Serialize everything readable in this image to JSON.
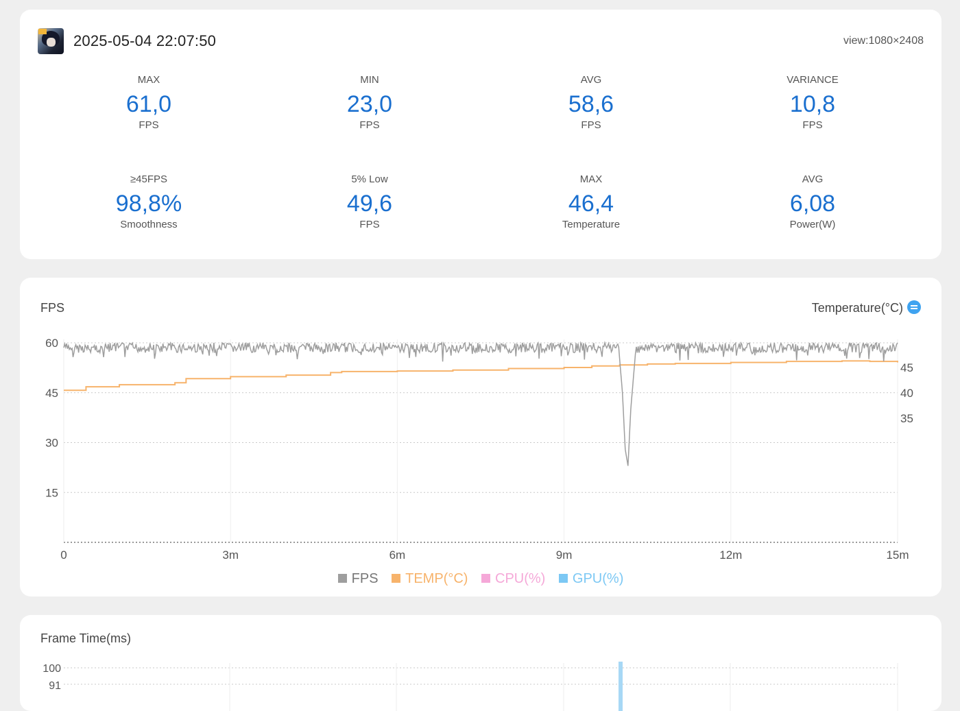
{
  "header": {
    "timestamp": "2025-05-04 22:07:50",
    "view": "view:1080×2408",
    "app_icon": "game-avatar-icon"
  },
  "stats": [
    {
      "label": "MAX",
      "value": "61,0",
      "unit": "FPS"
    },
    {
      "label": "MIN",
      "value": "23,0",
      "unit": "FPS"
    },
    {
      "label": "AVG",
      "value": "58,6",
      "unit": "FPS"
    },
    {
      "label": "VARIANCE",
      "value": "10,8",
      "unit": "FPS"
    },
    {
      "label": "≥45FPS",
      "value": "98,8%",
      "unit": "Smoothness"
    },
    {
      "label": "5% Low",
      "value": "49,6",
      "unit": "FPS"
    },
    {
      "label": "MAX",
      "value": "46,4",
      "unit": "Temperature"
    },
    {
      "label": "AVG",
      "value": "6,08",
      "unit": "Power(W)"
    }
  ],
  "fps_chart": {
    "title": "FPS",
    "right_title": "Temperature(°C)",
    "toggle_icon": "swap-axis-icon",
    "legend": [
      {
        "name": "FPS",
        "color": "#999999"
      },
      {
        "name": "TEMP(°C)",
        "color": "#f7b36b"
      },
      {
        "name": "CPU(%)",
        "color": "#f5a8d8"
      },
      {
        "name": "GPU(%)",
        "color": "#7cc8f4"
      }
    ]
  },
  "chart_data": [
    {
      "type": "line",
      "title": "FPS",
      "xlabel": "",
      "ylabel": "FPS",
      "y2label": "Temperature(°C)",
      "x_tick_labels": [
        "0",
        "3m",
        "6m",
        "9m",
        "12m",
        "15m"
      ],
      "x_range_minutes": [
        0,
        15
      ],
      "y_ticks": [
        "60",
        "45",
        "30",
        "15"
      ],
      "y2_ticks": [
        "45",
        "40",
        "35"
      ],
      "ylim": [
        0,
        61
      ],
      "grid": true,
      "legend_placement": "bottom",
      "series": [
        {
          "name": "FPS",
          "color": "#9e9e9e",
          "x": [
            0,
            0.5,
            1,
            1.5,
            2,
            2.5,
            3,
            3.5,
            4,
            4.5,
            5,
            5.5,
            6,
            6.5,
            7,
            7.5,
            8,
            8.5,
            9,
            9.5,
            9.9,
            10.0,
            10.05,
            10.1,
            10.15,
            10.2,
            10.3,
            10.5,
            11,
            11.5,
            12,
            12.5,
            13,
            13.5,
            14,
            14.5,
            15
          ],
          "values": [
            60,
            57,
            60,
            59,
            60,
            58,
            60,
            59,
            60,
            59,
            60,
            58,
            60,
            59,
            60,
            59,
            60,
            59,
            60,
            59,
            60,
            55,
            45,
            28,
            23,
            40,
            60,
            59,
            60,
            60,
            60,
            59,
            60,
            60,
            60,
            59,
            60
          ]
        },
        {
          "name": "TEMP(°C)",
          "color": "#f7b36b",
          "x": [
            0,
            0.3,
            0.4,
            1,
            2,
            2.2,
            3,
            4,
            4.8,
            5,
            6,
            7,
            8,
            9,
            9.5,
            10,
            10.5,
            11,
            12,
            13,
            14,
            14.5,
            15
          ],
          "values": [
            40.5,
            40.5,
            41.2,
            41.6,
            42.0,
            42.8,
            43.2,
            43.5,
            44.0,
            44.2,
            44.3,
            44.5,
            44.8,
            45.0,
            45.3,
            45.5,
            45.7,
            45.8,
            46.0,
            46.2,
            46.3,
            46.2,
            46.0
          ]
        },
        {
          "name": "CPU(%)",
          "color": "#f5a8d8",
          "x": [],
          "values": []
        },
        {
          "name": "GPU(%)",
          "color": "#7cc8f4",
          "x": [],
          "values": []
        }
      ]
    },
    {
      "type": "line",
      "title": "Frame Time(ms)",
      "y_ticks": [
        "100",
        "91"
      ],
      "series": []
    }
  ],
  "frame_time": {
    "title": "Frame Time(ms)",
    "y_top_label": "100",
    "y_next_label": "91"
  }
}
